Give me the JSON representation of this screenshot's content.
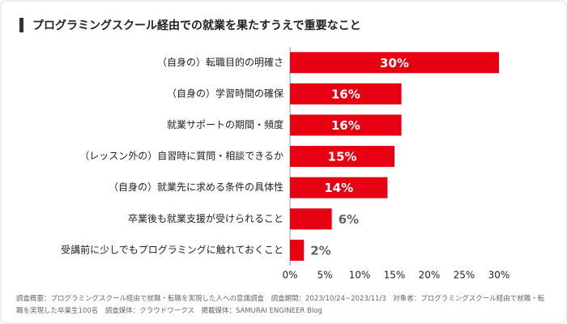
{
  "chart_data": {
    "type": "bar",
    "orientation": "horizontal",
    "title": "プログラミングスクール経由での就業を果たすうえで重要なこと",
    "categories": [
      "（自身の）転職目的の明確さ",
      "（自身の）学習時間の確保",
      "就業サポートの期間・頻度",
      "（レッスン外の）自習時に質問・相談できるか",
      "（自身の）就業先に求める条件の具体性",
      "卒業後も就業支援が受けられること",
      "受講前に少しでもプログラミングに触れておくこと"
    ],
    "values": [
      30,
      16,
      16,
      15,
      14,
      6,
      2
    ],
    "value_labels": [
      "30%",
      "16%",
      "16%",
      "15%",
      "14%",
      "6%",
      "2%"
    ],
    "color": "#e60012",
    "xlim": [
      0,
      30
    ],
    "xticks": [
      {
        "value": 0,
        "label": "0%"
      },
      {
        "value": 5,
        "label": "5%"
      },
      {
        "value": 10,
        "label": "10%"
      },
      {
        "value": 15,
        "label": "15%"
      },
      {
        "value": 20,
        "label": "20%"
      },
      {
        "value": 25,
        "label": "25%"
      },
      {
        "value": 30,
        "label": "30%"
      }
    ],
    "note": "調査概要：プログラミングスクール経由で就職・転職を実現した人への意識調査　調査期間：2023/10/24~2023/11/3　対象者：プログラミングスクール経由で就職・転職を実現した卒業生100名　調査媒体：クラウドワークス　掲載媒体：SAMURAI ENGINEER Blog"
  }
}
